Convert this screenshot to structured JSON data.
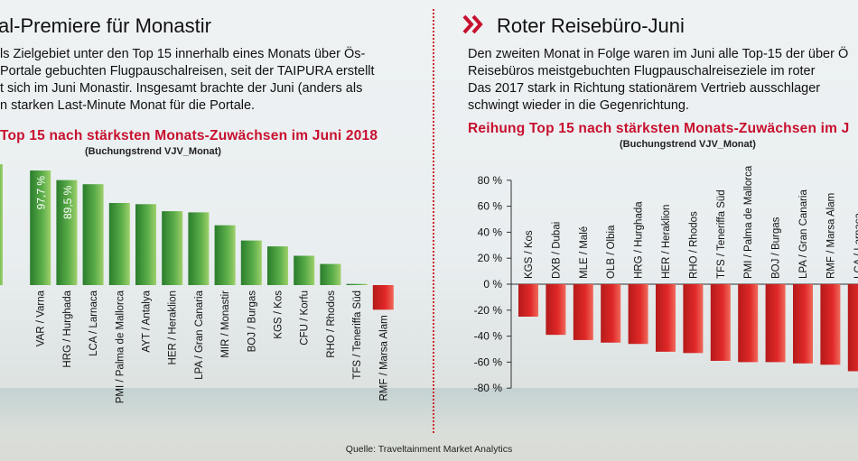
{
  "left": {
    "title": "al-Premiere für Monastir",
    "paragraph": [
      "ls Zielgebiet unter den Top 15 innerhalb eines Monats über Ös-",
      "Portale gebuchten Flugpauschalreisen, seit der TAIPURA erstellt",
      "t sich im Juni Monastir. Insgesamt brachte der Juni (anders als",
      "n starken Last-Minute Monat für die Portale."
    ],
    "chart_title": "Top 15 nach stärksten Monats-Zuwächsen im Juni 2018",
    "chart_subtitle": "(Buchungstrend VJV_Monat)"
  },
  "right": {
    "title": "Roter Reisebüro-Juni",
    "paragraph": [
      "Den zweiten Monat in Folge waren im Juni alle Top-15 der über Ö",
      "Reisebüros meistgebuchten Flugpauschalreiseziele im roter",
      "Das 2017 stark in Richtung stationärem Vertrieb ausschlager",
      "schwingt wieder in die Gegenrichtung."
    ],
    "chart_title": "Reihung Top 15 nach stärksten Monats-Zuwächsen im J",
    "chart_subtitle": "(Buchungstrend VJV_Monat)"
  },
  "footer": "Quelle: Traveltainment Market Analytics",
  "colors": {
    "accent_red": "#c8102e",
    "bar_green": "#3f9d3a",
    "bar_red": "#d42020"
  },
  "chart_data": [
    {
      "type": "bar",
      "title": "Top 15 nach stärksten Monats-Zuwächsen im Juni 2018",
      "subtitle": "(Buchungstrend VJV_Monat)",
      "categories": [
        "",
        "VAR / Varna",
        "HRG / Hurghada",
        "LCA / Larnaca",
        "PMI / Palma de Mallorca",
        "AYT / Antalya",
        "HER / Heraklion",
        "LPA / Gran Canaria",
        "MIR / Monastir",
        "BOJ / Burgas",
        "KGS / Kos",
        "CFU / Korfu",
        "RHO / Rhodos",
        "TFS / Teneriffa Süd",
        "RMF / Marsa Alam"
      ],
      "values": [
        103,
        97.7,
        89.5,
        86,
        70,
        69,
        63,
        62,
        51,
        38,
        33,
        25,
        18,
        1,
        -21
      ],
      "data_labels": [
        "",
        "97,7 %",
        "89,5 %",
        "",
        "",
        "",
        "",
        "",
        "",
        "",
        "",
        "",
        "",
        "",
        ""
      ]
    },
    {
      "type": "bar",
      "title": "Reihung Top 15 nach stärksten Monats-Zuwächsen im J",
      "subtitle": "(Buchungstrend VJV_Monat)",
      "categories": [
        "KGS / Kos",
        "DXB / Dubai",
        "MLE / Malé",
        "OLB / Olbia",
        "HRG / Hurghada",
        "HER / Heraklion",
        "RHO / Rhodos",
        "TFS / Teneriffa Süd",
        "PMI / Palma de Mallorca",
        "BOJ / Burgas",
        "LPA / Gran Canaria",
        "RMF / Marsa Alam",
        "LCA / Larnaca"
      ],
      "values": [
        -25,
        -39,
        -43,
        -45,
        -46,
        -52,
        -53,
        -59,
        -60,
        -60,
        -61,
        -62,
        -67
      ],
      "ylim": [
        -80,
        80
      ],
      "yticks": [
        "80 %",
        "60 %",
        "40 %",
        "20 %",
        "0 %",
        "-20 %",
        "-40 %",
        "-60 %",
        "-80 %"
      ]
    }
  ]
}
